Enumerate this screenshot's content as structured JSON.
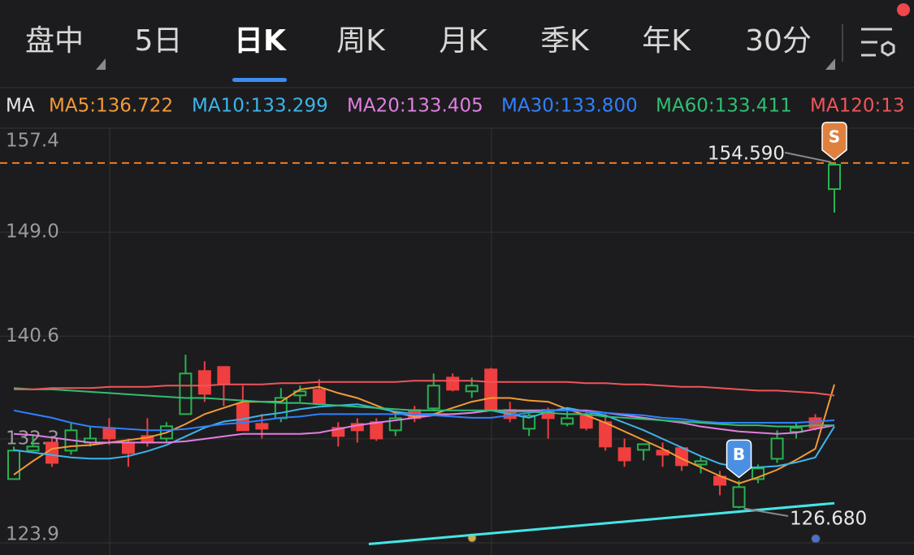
{
  "tabs": {
    "items": [
      "盘中",
      "5日",
      "日K",
      "周K",
      "月K",
      "季K",
      "年K",
      "30分"
    ],
    "selected": 2
  },
  "ma_legend": {
    "title": "MA"
  },
  "chart_data": {
    "type": "candlestick",
    "ylim": [
      123.9,
      157.4
    ],
    "yticks": [
      157.4,
      {
        "value": 149,
        "label": "149.0"
      },
      140.6,
      132.3,
      123.9
    ],
    "grid": true,
    "up_color": "#27b34f",
    "down_color": "#ef3f3f",
    "open": [
      129.05,
      131.35,
      132.0,
      131.35,
      132.0,
      133.12,
      132.0,
      132.53,
      132.33,
      134.3,
      137.78,
      138.11,
      135.15,
      133.51,
      133.97,
      135.81,
      136.27,
      133.19,
      133.51,
      133.65,
      132.99,
      134.63,
      134.76,
      137.25,
      136.14,
      137.91,
      134.63,
      133.12,
      134.63,
      133.51,
      134.3,
      133.65,
      131.55,
      131.41,
      131.35,
      131.55,
      130.23,
      129.25,
      126.8,
      129.05,
      130.69,
      132.86,
      133.97,
      152.48
    ],
    "high": [
      131.68,
      132.66,
      132.33,
      133.65,
      133.32,
      133.97,
      132.33,
      133.97,
      133.65,
      139.09,
      138.57,
      138.11,
      136.6,
      134.3,
      136.4,
      136.6,
      137.12,
      133.65,
      133.97,
      133.97,
      134.3,
      134.96,
      137.58,
      137.58,
      137.25,
      138.04,
      135.29,
      134.63,
      134.83,
      134.63,
      134.63,
      134.3,
      132.33,
      131.87,
      132.0,
      131.68,
      130.82,
      129.71,
      128.92,
      130.23,
      132.99,
      133.65,
      134.3,
      154.59
    ],
    "low": [
      129.05,
      131.35,
      130.04,
      131.02,
      131.68,
      131.81,
      130.04,
      131.68,
      132.0,
      134.3,
      135.29,
      134.96,
      132.99,
      132.33,
      133.65,
      135.29,
      135.15,
      131.68,
      132.0,
      132.14,
      132.53,
      133.65,
      134.63,
      136.14,
      135.61,
      134.63,
      133.65,
      132.53,
      132.33,
      133.32,
      132.99,
      131.35,
      130.04,
      130.56,
      130.04,
      129.71,
      129.51,
      127.74,
      126.68,
      128.72,
      130.36,
      132.33,
      132.99,
      150.58
    ],
    "close": [
      131.35,
      131.68,
      130.36,
      132.99,
      132.33,
      132.33,
      131.15,
      132.0,
      133.32,
      137.58,
      135.94,
      136.8,
      132.99,
      133.12,
      135.61,
      136.14,
      135.15,
      132.53,
      132.99,
      132.33,
      133.97,
      133.97,
      136.6,
      136.27,
      136.6,
      134.63,
      133.97,
      134.17,
      133.97,
      133.97,
      133.19,
      131.68,
      130.56,
      131.87,
      131.02,
      130.17,
      130.5,
      128.59,
      128.4,
      129.91,
      132.33,
      133.19,
      133.19,
      154.45
    ],
    "series": [
      {
        "name": "MA5:136.722",
        "color": "#f39a36",
        "values": [
          129.4,
          130.5,
          131.5,
          131.7,
          131.8,
          132.0,
          132.2,
          132.4,
          132.8,
          133.5,
          134.3,
          134.8,
          135.3,
          135.3,
          135.3,
          136.3,
          136.5,
          136.0,
          135.6,
          135.0,
          134.4,
          134.1,
          134.3,
          134.8,
          135.3,
          135.6,
          135.6,
          135.4,
          135.3,
          134.7,
          134.2,
          133.6,
          132.9,
          132.2,
          131.5,
          130.7,
          130.0,
          129.3,
          128.7,
          129.2,
          129.8,
          130.6,
          131.5,
          136.7
        ]
      },
      {
        "name": "MA10:133.299",
        "color": "#3db4ea",
        "values": [
          131.4,
          131.2,
          131.0,
          130.8,
          130.7,
          130.7,
          130.9,
          131.3,
          131.8,
          132.5,
          133.2,
          133.7,
          133.9,
          134.2,
          134.4,
          134.7,
          134.9,
          135.0,
          135.1,
          134.8,
          134.5,
          134.3,
          134.3,
          134.3,
          134.4,
          134.6,
          134.3,
          134.0,
          134.5,
          134.8,
          134.5,
          134.2,
          133.6,
          133.0,
          132.3,
          131.6,
          130.9,
          130.3,
          130.0,
          130.0,
          130.1,
          130.4,
          130.8,
          133.3
        ]
      },
      {
        "name": "MA20:133.405",
        "color": "#e07fe0",
        "values": [
          132.7,
          132.6,
          132.4,
          132.2,
          132.0,
          132.0,
          132.0,
          132.0,
          132.0,
          132.1,
          132.3,
          132.5,
          132.7,
          132.7,
          132.7,
          132.7,
          132.8,
          133.1,
          133.4,
          133.6,
          133.8,
          134.0,
          134.2,
          134.3,
          134.4,
          134.6,
          134.6,
          134.6,
          134.6,
          134.6,
          134.6,
          134.4,
          134.2,
          134.0,
          133.8,
          133.6,
          133.3,
          133.1,
          132.9,
          132.8,
          132.7,
          132.8,
          133.1,
          133.4
        ]
      },
      {
        "name": "MA30:133.800",
        "color": "#3080ff",
        "values": [
          134.6,
          134.3,
          134.0,
          133.6,
          133.3,
          133.2,
          133.1,
          133.0,
          133.0,
          133.1,
          133.3,
          133.5,
          133.6,
          133.8,
          134.0,
          134.1,
          134.3,
          134.3,
          134.3,
          134.3,
          134.3,
          134.3,
          134.2,
          134.1,
          134.0,
          134.0,
          134.2,
          134.4,
          134.6,
          134.6,
          134.5,
          134.4,
          134.3,
          134.2,
          134.0,
          133.9,
          133.7,
          133.6,
          133.6,
          133.6,
          133.6,
          133.6,
          133.7,
          133.8
        ]
      },
      {
        "name": "MA60:133.411",
        "color": "#2fbf72",
        "values": [
          136.4,
          136.3,
          136.3,
          136.2,
          136.1,
          136.0,
          135.9,
          135.8,
          135.7,
          135.6,
          135.6,
          135.5,
          135.4,
          135.3,
          135.2,
          135.2,
          135.1,
          135.0,
          134.9,
          134.8,
          134.7,
          134.6,
          134.6,
          134.6,
          134.6,
          134.6,
          134.5,
          134.5,
          134.4,
          134.3,
          134.3,
          134.1,
          134.0,
          133.9,
          133.8,
          133.7,
          133.6,
          133.5,
          133.4,
          133.4,
          133.3,
          133.3,
          133.4,
          133.4
        ]
      },
      {
        "name": "MA120:13",
        "color": "#f0545a",
        "values": [
          136.3,
          136.3,
          136.4,
          136.4,
          136.4,
          136.5,
          136.5,
          136.5,
          136.6,
          136.6,
          136.6,
          136.7,
          136.7,
          136.7,
          136.8,
          136.8,
          136.9,
          136.9,
          136.9,
          136.9,
          136.9,
          137.0,
          137.0,
          137.0,
          137.0,
          136.9,
          136.9,
          136.9,
          136.9,
          136.9,
          136.8,
          136.8,
          136.7,
          136.7,
          136.6,
          136.5,
          136.5,
          136.4,
          136.3,
          136.2,
          136.2,
          136.1,
          136.0,
          135.8
        ]
      }
    ],
    "trend_line": {
      "color": "#45e6e6",
      "x": [
        18.6,
        43
      ],
      "values": [
        123.8,
        127.1
      ]
    },
    "high_label": {
      "value": 154.59,
      "label": "154.590",
      "color": "#f07a22"
    },
    "low_label": {
      "value": 126.68,
      "label": "126.680"
    },
    "markers": [
      {
        "label": "B",
        "index": 38,
        "color": "#4a90e2"
      },
      {
        "label": "S",
        "index": 43,
        "color": "#e0803e"
      }
    ]
  }
}
